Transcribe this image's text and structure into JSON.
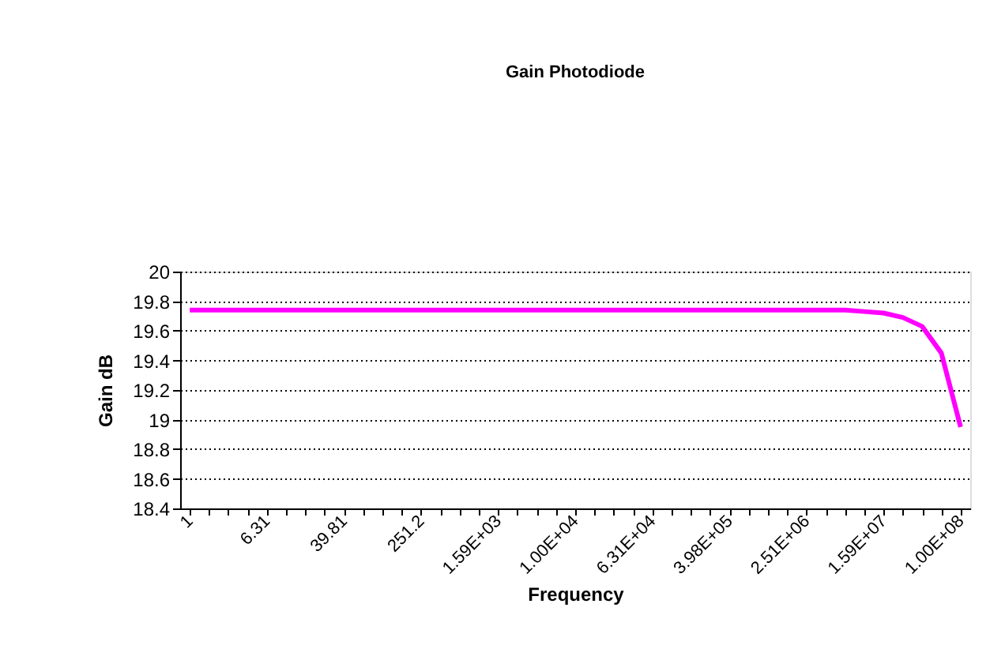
{
  "chart_data": {
    "type": "line",
    "title": "Gain Photodiode",
    "xlabel": "Frequency",
    "ylabel": "Gain dB",
    "categories": [
      "1",
      null,
      null,
      null,
      "6.31",
      null,
      null,
      null,
      "39.81",
      null,
      null,
      null,
      "251.2",
      null,
      null,
      null,
      "1.59E+03",
      null,
      null,
      null,
      "1.00E+04",
      null,
      null,
      null,
      "6.31E+04",
      null,
      null,
      null,
      "3.98E+05",
      null,
      null,
      null,
      "2.51E+06",
      null,
      null,
      null,
      "1.59E+07",
      null,
      null,
      null,
      "1.00E+08"
    ],
    "series": [
      {
        "color": "#ff00ff",
        "values": [
          19.74,
          19.74,
          19.74,
          19.74,
          19.74,
          19.74,
          19.74,
          19.74,
          19.74,
          19.74,
          19.74,
          19.74,
          19.74,
          19.74,
          19.74,
          19.74,
          19.74,
          19.74,
          19.74,
          19.74,
          19.74,
          19.74,
          19.74,
          19.74,
          19.74,
          19.74,
          19.74,
          19.74,
          19.74,
          19.74,
          19.74,
          19.74,
          19.74,
          19.74,
          19.74,
          19.73,
          19.72,
          19.69,
          19.63,
          19.45,
          18.95
        ]
      }
    ],
    "ylim": [
      18.4,
      20
    ],
    "yticks": [
      18.4,
      18.6,
      18.8,
      19,
      19.2,
      19.4,
      19.6,
      19.8,
      20
    ],
    "grid": "y",
    "marker": "none",
    "line_style": "solid"
  }
}
